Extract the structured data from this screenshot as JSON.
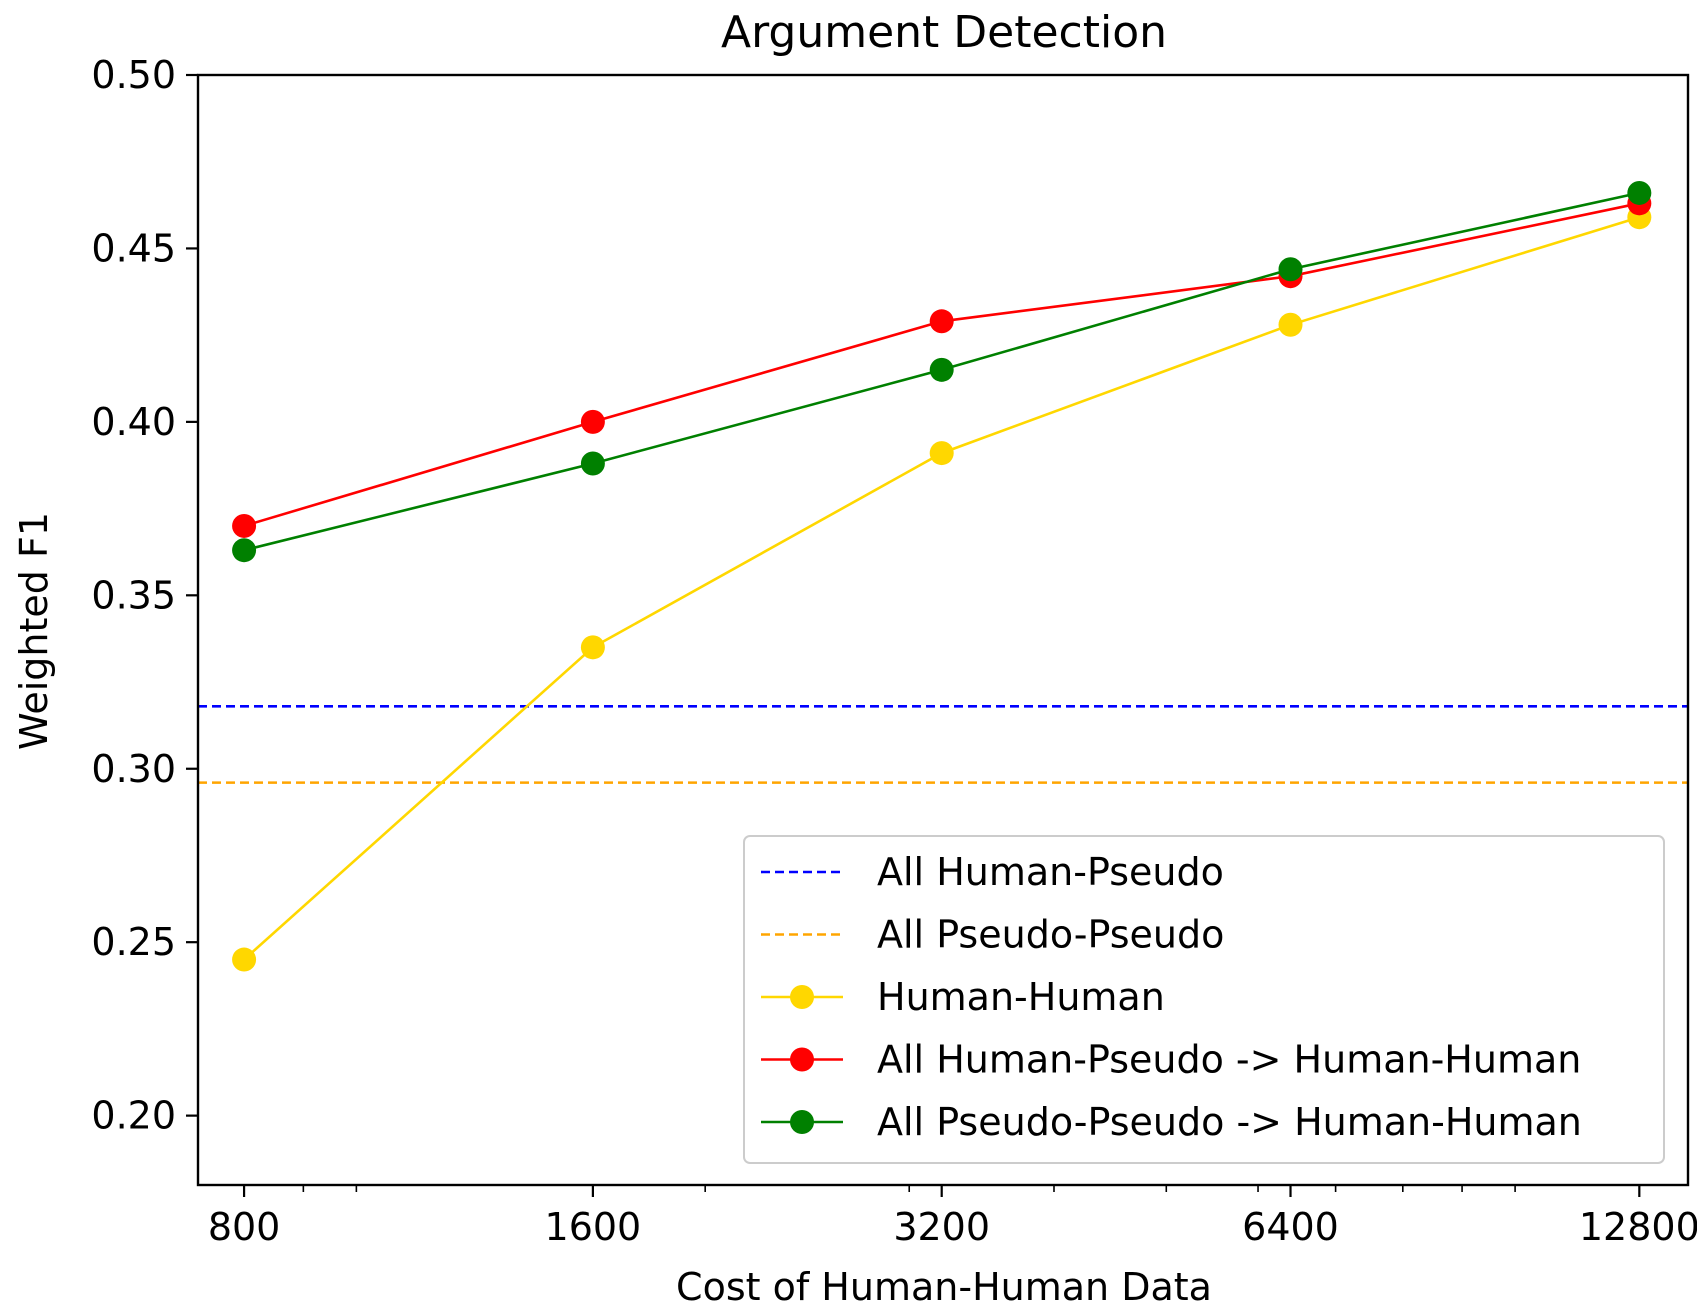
{
  "chart_data": {
    "type": "line",
    "title": "Argument Detection",
    "xlabel": "Cost of Human-Human Data",
    "ylabel": "Weighted F1",
    "x_scale": "log2",
    "x": [
      800,
      1600,
      3200,
      6400,
      12800
    ],
    "x_tick_labels": [
      "800",
      "1600",
      "3200",
      "6400",
      "12800"
    ],
    "xlim": [
      730,
      14100
    ],
    "ylim": [
      0.18,
      0.5
    ],
    "y_ticks": [
      0.2,
      0.25,
      0.3,
      0.35,
      0.4,
      0.45,
      0.5
    ],
    "y_tick_labels": [
      "0.20",
      "0.25",
      "0.30",
      "0.35",
      "0.40",
      "0.45",
      "0.50"
    ],
    "grid": false,
    "legend_position": "lower-right",
    "reference_lines": [
      {
        "name": "All Human-Pseudo",
        "y": 0.318,
        "color": "#0000ff",
        "style": "dashed"
      },
      {
        "name": "All Pseudo-Pseudo",
        "y": 0.296,
        "color": "#ffa500",
        "style": "dashed"
      }
    ],
    "series": [
      {
        "name": "Human-Human",
        "color": "#ffd700",
        "values": [
          0.245,
          0.335,
          0.391,
          0.428,
          0.459
        ]
      },
      {
        "name": "All Human-Pseudo -> Human-Human",
        "color": "#ff0000",
        "values": [
          0.37,
          0.4,
          0.429,
          0.442,
          0.463
        ]
      },
      {
        "name": "All Pseudo-Pseudo -> Human-Human",
        "color": "#008000",
        "values": [
          0.363,
          0.388,
          0.415,
          0.444,
          0.466
        ]
      }
    ]
  }
}
